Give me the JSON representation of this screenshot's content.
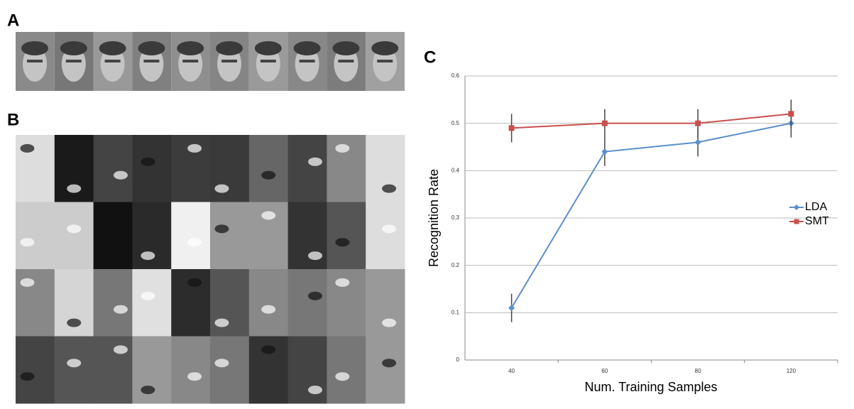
{
  "panels": {
    "a": "A",
    "b": "B"
  },
  "chart_data": {
    "type": "line",
    "panel": "C",
    "xlabel": "Num. Training Samples",
    "ylabel": "Recognition Rate",
    "categories": [
      "40",
      "60",
      "80",
      "120"
    ],
    "series": [
      {
        "name": "LDA",
        "color": "#5b8fc9",
        "marker": "diamond",
        "values": [
          0.11,
          0.44,
          0.46,
          0.5
        ],
        "errors": [
          0.03,
          0.03,
          0.03,
          0.03
        ]
      },
      {
        "name": "SMT",
        "color": "#c9504c",
        "marker": "square",
        "values": [
          0.49,
          0.5,
          0.5,
          0.52
        ],
        "errors": [
          0.03,
          0.03,
          0.03,
          0.03
        ]
      }
    ],
    "ylim": [
      0,
      0.6
    ],
    "yticks": [
      0,
      0.1,
      0.2,
      0.3,
      0.4,
      0.5,
      0.6
    ],
    "grid": true,
    "legend": "right"
  }
}
